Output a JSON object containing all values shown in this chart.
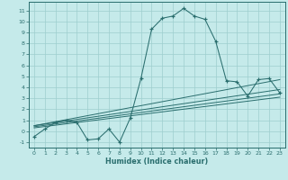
{
  "xlabel": "Humidex (Indice chaleur)",
  "xlim": [
    -0.5,
    23.5
  ],
  "ylim": [
    -1.5,
    11.8
  ],
  "xticks": [
    0,
    1,
    2,
    3,
    4,
    5,
    6,
    7,
    8,
    9,
    10,
    11,
    12,
    13,
    14,
    15,
    16,
    17,
    18,
    19,
    20,
    21,
    22,
    23
  ],
  "yticks": [
    -1,
    0,
    1,
    2,
    3,
    4,
    5,
    6,
    7,
    8,
    9,
    10,
    11
  ],
  "bg_color": "#c5eaea",
  "line_color": "#2a6e6e",
  "grid_color": "#9ecece",
  "main_x": [
    0,
    1,
    2,
    3,
    4,
    5,
    6,
    7,
    8,
    9,
    10,
    11,
    12,
    13,
    14,
    15,
    16,
    17,
    18,
    19,
    20,
    21,
    22,
    23
  ],
  "main_y": [
    -0.5,
    0.2,
    0.8,
    1.0,
    0.8,
    -0.8,
    -0.7,
    0.2,
    -1.0,
    1.2,
    4.8,
    9.3,
    10.3,
    10.5,
    11.2,
    10.5,
    10.2,
    8.2,
    4.6,
    4.5,
    3.2,
    4.7,
    4.8,
    3.5
  ],
  "trend_lines": [
    {
      "x": [
        0,
        23
      ],
      "y": [
        0.5,
        4.7
      ]
    },
    {
      "x": [
        0,
        23
      ],
      "y": [
        0.5,
        3.8
      ]
    },
    {
      "x": [
        0,
        23
      ],
      "y": [
        0.4,
        3.4
      ]
    },
    {
      "x": [
        0,
        23
      ],
      "y": [
        0.3,
        3.1
      ]
    }
  ]
}
